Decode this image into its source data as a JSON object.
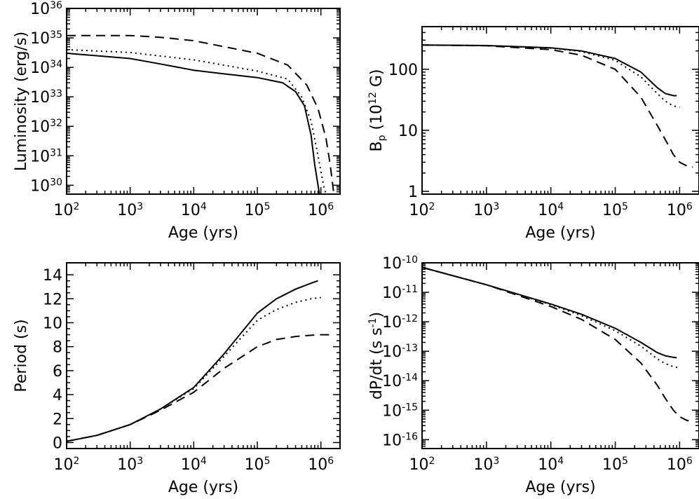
{
  "chart_data": [
    {
      "id": "luminosity",
      "type": "line",
      "title": "",
      "xlabel": "Age (yrs)",
      "ylabel": "Luminosity (erg/s)",
      "xscale": "log",
      "yscale": "log",
      "xlim": [
        100,
        2000000
      ],
      "ylim": [
        5e+29,
        1e+36
      ],
      "xticks": [
        100,
        1000,
        10000,
        100000,
        1000000
      ],
      "xtick_labels": [
        {
          "base": "10",
          "exp": "2"
        },
        {
          "base": "10",
          "exp": "3"
        },
        {
          "base": "10",
          "exp": "4"
        },
        {
          "base": "10",
          "exp": "5"
        },
        {
          "base": "10",
          "exp": "6"
        }
      ],
      "yticks": [
        1e+30,
        1e+31,
        1e+32,
        1e+33,
        1e+34,
        1e+35,
        1e+36
      ],
      "ytick_labels": [
        {
          "base": "10",
          "exp": "30"
        },
        {
          "base": "10",
          "exp": "31"
        },
        {
          "base": "10",
          "exp": "32"
        },
        {
          "base": "10",
          "exp": "33"
        },
        {
          "base": "10",
          "exp": "34"
        },
        {
          "base": "10",
          "exp": "35"
        },
        {
          "base": "10",
          "exp": "36"
        }
      ],
      "grid": false,
      "series": [
        {
          "style": "solid",
          "x": [
            100,
            1000,
            3000,
            10000,
            30000,
            100000,
            250000,
            400000,
            550000,
            700000,
            800000,
            900000,
            950000
          ],
          "y": [
            3e+34,
            2e+34,
            1.3e+34,
            8e+33,
            6e+33,
            4.5e+33,
            3e+33,
            1.5e+33,
            5e+32,
            5e+31,
            5e+30,
            1e+30,
            5e+29
          ]
        },
        {
          "style": "dotted",
          "x": [
            100,
            1000,
            10000,
            100000,
            300000,
            500000,
            700000,
            900000,
            1000000,
            1100000,
            1200000
          ],
          "y": [
            4e+34,
            3.2e+34,
            1.8e+34,
            7.5e+33,
            4e+33,
            1e+33,
            1.5e+32,
            1e+31,
            3e+30,
            1e+30,
            5e+29
          ]
        },
        {
          "style": "dashed",
          "x": [
            100,
            1000,
            3000,
            10000,
            100000,
            300000,
            600000,
            900000,
            1200000,
            1400000,
            1500000,
            1600000
          ],
          "y": [
            1.2e+35,
            1.2e+35,
            1.05e+35,
            8e+34,
            3e+34,
            1.2e+34,
            2.5e+33,
            4e+32,
            4e+31,
            5e+30,
            1.5e+30,
            5e+29
          ]
        }
      ]
    },
    {
      "id": "bfield",
      "type": "line",
      "title": "",
      "xlabel": "Age (yrs)",
      "ylabel": {
        "main": "B",
        "sub": "p",
        "unit_pre": "(10",
        "unit_exp": "12",
        "unit_post": " G)"
      },
      "xscale": "log",
      "yscale": "log",
      "xlim": [
        100,
        2000000
      ],
      "ylim": [
        0.9,
        500
      ],
      "xticks": [
        100,
        1000,
        10000,
        100000,
        1000000
      ],
      "xtick_labels": [
        {
          "base": "10",
          "exp": "2"
        },
        {
          "base": "10",
          "exp": "3"
        },
        {
          "base": "10",
          "exp": "4"
        },
        {
          "base": "10",
          "exp": "5"
        },
        {
          "base": "10",
          "exp": "6"
        }
      ],
      "yticks": [
        1,
        10,
        100
      ],
      "ytick_labels": [
        "1",
        "10",
        "100"
      ],
      "grid": false,
      "series": [
        {
          "style": "solid",
          "x": [
            100,
            1000,
            10000,
            30000,
            100000,
            250000,
            450000,
            600000,
            800000,
            900000
          ],
          "y": [
            250,
            245,
            225,
            200,
            150,
            90,
            50,
            40,
            37,
            37
          ]
        },
        {
          "style": "dotted",
          "x": [
            100,
            1000,
            10000,
            30000,
            100000,
            250000,
            450000,
            600000,
            800000,
            1000000
          ],
          "y": [
            250,
            245,
            222,
            195,
            140,
            75,
            40,
            30,
            25,
            24
          ]
        },
        {
          "style": "dashed",
          "x": [
            100,
            1000,
            10000,
            30000,
            100000,
            250000,
            450000,
            600000,
            800000,
            1000000,
            1300000,
            1600000
          ],
          "y": [
            250,
            243,
            210,
            170,
            100,
            35,
            12,
            7,
            4,
            3,
            2.6,
            2.5
          ]
        }
      ]
    },
    {
      "id": "period",
      "type": "line",
      "title": "",
      "xlabel": "Age (yrs)",
      "ylabel": "Period (s)",
      "xscale": "log",
      "yscale": "linear",
      "xlim": [
        100,
        2000000
      ],
      "ylim": [
        -0.5,
        15
      ],
      "xticks": [
        100,
        1000,
        10000,
        100000,
        1000000
      ],
      "xtick_labels": [
        {
          "base": "10",
          "exp": "2"
        },
        {
          "base": "10",
          "exp": "3"
        },
        {
          "base": "10",
          "exp": "4"
        },
        {
          "base": "10",
          "exp": "5"
        },
        {
          "base": "10",
          "exp": "6"
        }
      ],
      "yticks": [
        0,
        2,
        4,
        6,
        8,
        10,
        12,
        14
      ],
      "ytick_labels": [
        "0",
        "2",
        "4",
        "6",
        "8",
        "10",
        "12",
        "14"
      ],
      "grid": false,
      "series": [
        {
          "style": "solid",
          "x": [
            100,
            300,
            1000,
            3000,
            10000,
            30000,
            100000,
            200000,
            400000,
            700000,
            900000
          ],
          "y": [
            0.1,
            0.6,
            1.5,
            2.8,
            4.6,
            7.4,
            10.8,
            12.0,
            12.8,
            13.3,
            13.5
          ]
        },
        {
          "style": "dotted",
          "x": [
            100,
            300,
            1000,
            3000,
            10000,
            30000,
            100000,
            200000,
            400000,
            700000,
            1000000
          ],
          "y": [
            0.1,
            0.6,
            1.5,
            2.8,
            4.5,
            7.2,
            10.2,
            11.1,
            11.7,
            12.0,
            12.1
          ]
        },
        {
          "style": "dashed",
          "x": [
            100,
            300,
            1000,
            3000,
            10000,
            30000,
            100000,
            200000,
            400000,
            700000,
            1000000,
            1500000
          ],
          "y": [
            0.1,
            0.6,
            1.5,
            2.7,
            4.2,
            6.2,
            8.0,
            8.6,
            8.85,
            8.95,
            9.0,
            9.0
          ]
        }
      ]
    },
    {
      "id": "pdot",
      "type": "line",
      "title": "",
      "xlabel": "Age (yrs)",
      "ylabel": {
        "main": "dP/dt",
        "unit_pre": "(s s",
        "unit_exp": "-1",
        "unit_post": ")"
      },
      "xscale": "log",
      "yscale": "log",
      "xlim": [
        100,
        2000000
      ],
      "ylim": [
        5e-17,
        1e-10
      ],
      "xticks": [
        100,
        1000,
        10000,
        100000,
        1000000
      ],
      "xtick_labels": [
        {
          "base": "10",
          "exp": "2"
        },
        {
          "base": "10",
          "exp": "3"
        },
        {
          "base": "10",
          "exp": "4"
        },
        {
          "base": "10",
          "exp": "5"
        },
        {
          "base": "10",
          "exp": "6"
        }
      ],
      "yticks": [
        1e-16,
        1e-15,
        1e-14,
        1e-13,
        1e-12,
        1e-11,
        1e-10
      ],
      "ytick_labels": [
        {
          "base": "10",
          "exp": "-16"
        },
        {
          "base": "10",
          "exp": "-15"
        },
        {
          "base": "10",
          "exp": "-14"
        },
        {
          "base": "10",
          "exp": "-13"
        },
        {
          "base": "10",
          "exp": "-12"
        },
        {
          "base": "10",
          "exp": "-11"
        },
        {
          "base": "10",
          "exp": "-10"
        }
      ],
      "grid": false,
      "series": [
        {
          "style": "solid",
          "x": [
            100,
            1000,
            10000,
            30000,
            100000,
            250000,
            450000,
            600000,
            800000,
            900000
          ],
          "y": [
            7e-11,
            1.8e-11,
            4e-12,
            1.8e-12,
            6e-13,
            2e-13,
            9e-14,
            7e-14,
            6.2e-14,
            6e-14
          ]
        },
        {
          "style": "dotted",
          "x": [
            100,
            1000,
            10000,
            30000,
            100000,
            250000,
            450000,
            600000,
            800000,
            1000000
          ],
          "y": [
            7e-11,
            1.8e-11,
            3.8e-12,
            1.6e-12,
            5e-13,
            1.5e-13,
            5.5e-14,
            3.8e-14,
            3e-14,
            2.7e-14
          ]
        },
        {
          "style": "dashed",
          "x": [
            100,
            1000,
            10000,
            30000,
            100000,
            250000,
            450000,
            600000,
            800000,
            1000000,
            1300000,
            1600000
          ],
          "y": [
            7e-11,
            1.8e-11,
            3.3e-12,
            1.2e-12,
            2.5e-13,
            4e-14,
            7e-15,
            2.5e-15,
            1e-15,
            6e-16,
            4.5e-16,
            4e-16
          ]
        }
      ]
    }
  ]
}
